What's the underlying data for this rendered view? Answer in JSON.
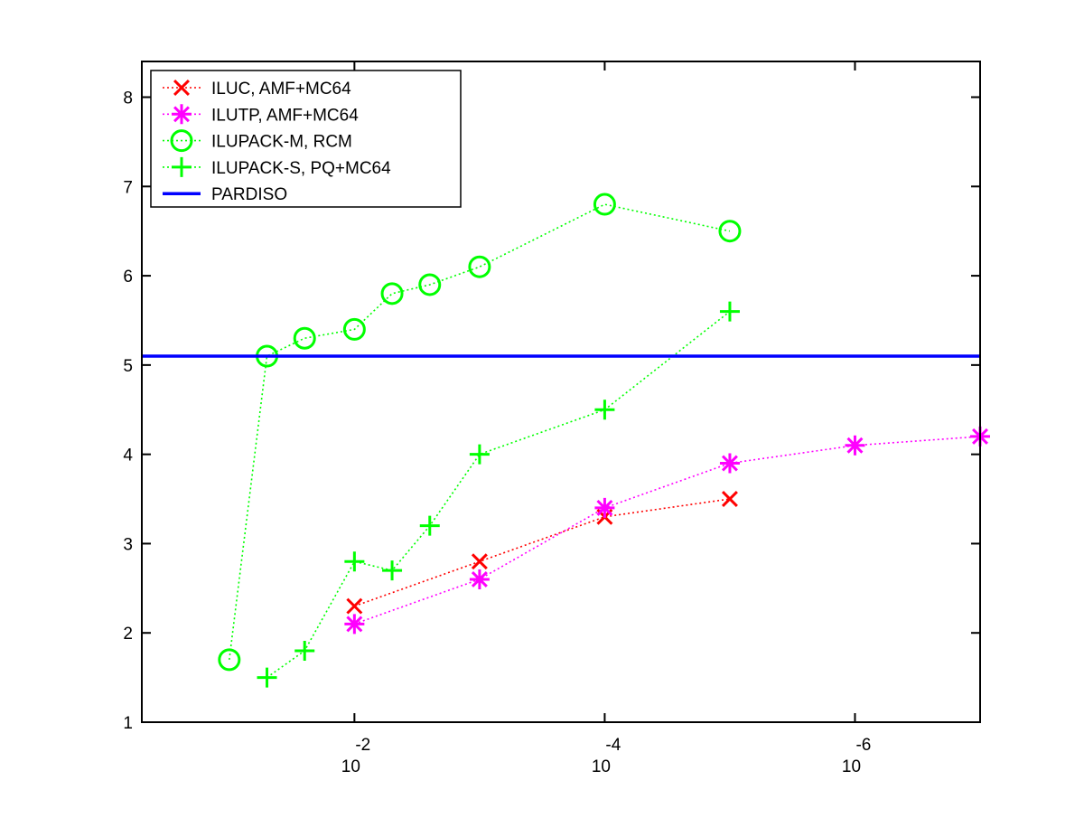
{
  "chart_data": {
    "type": "line",
    "title": "",
    "xlabel": "",
    "ylabel": "",
    "xscale": "log",
    "x_reversed": true,
    "xlim": [
      0.5,
      1e-07
    ],
    "ylim": [
      1,
      8.4
    ],
    "grid": false,
    "legend_position": "top-left",
    "x_ticks": [
      {
        "value": 0.01,
        "base": "10",
        "exponent": "-2"
      },
      {
        "value": 0.0001,
        "base": "10",
        "exponent": "-4"
      },
      {
        "value": 1e-06,
        "base": "10",
        "exponent": "-6"
      }
    ],
    "y_ticks": [
      {
        "value": 1,
        "label": "1"
      },
      {
        "value": 2,
        "label": "2"
      },
      {
        "value": 3,
        "label": "3"
      },
      {
        "value": 4,
        "label": "4"
      },
      {
        "value": 5,
        "label": "5"
      },
      {
        "value": 6,
        "label": "6"
      },
      {
        "value": 7,
        "label": "7"
      },
      {
        "value": 8,
        "label": "8"
      }
    ],
    "series": [
      {
        "name": "ILUC, AMF+MC64",
        "color": "#ff0000",
        "marker": "x",
        "line": "dotted",
        "x": [
          0.01,
          0.001,
          0.0001,
          1e-05
        ],
        "y": [
          2.3,
          2.8,
          3.3,
          3.5
        ]
      },
      {
        "name": "ILUTP, AMF+MC64",
        "color": "#ff00ff",
        "marker": "star",
        "line": "dotted",
        "x": [
          0.01,
          0.001,
          0.0001,
          1e-05,
          1e-06,
          1e-07
        ],
        "y": [
          2.1,
          2.6,
          3.4,
          3.9,
          4.1,
          4.2
        ]
      },
      {
        "name": "ILUPACK-M, RCM",
        "color": "#00ff00",
        "marker": "circle",
        "line": "dotted",
        "x": [
          0.1,
          0.05,
          0.025,
          0.01,
          0.005,
          0.0025,
          0.001,
          0.0001,
          1e-05
        ],
        "y": [
          1.7,
          5.1,
          5.3,
          5.4,
          5.8,
          5.9,
          6.1,
          6.8,
          6.5
        ]
      },
      {
        "name": "ILUPACK-S, PQ+MC64",
        "color": "#00ff00",
        "marker": "plus",
        "line": "dotted",
        "x": [
          0.05,
          0.025,
          0.01,
          0.005,
          0.0025,
          0.001,
          0.0001,
          1e-05
        ],
        "y": [
          1.5,
          1.8,
          2.8,
          2.7,
          3.2,
          4.0,
          4.5,
          5.6
        ]
      },
      {
        "name": "PARDISO",
        "color": "#0000ff",
        "marker": "none",
        "line": "solid",
        "x": [
          0.5,
          1e-07
        ],
        "y": [
          5.1,
          5.1
        ]
      }
    ]
  }
}
